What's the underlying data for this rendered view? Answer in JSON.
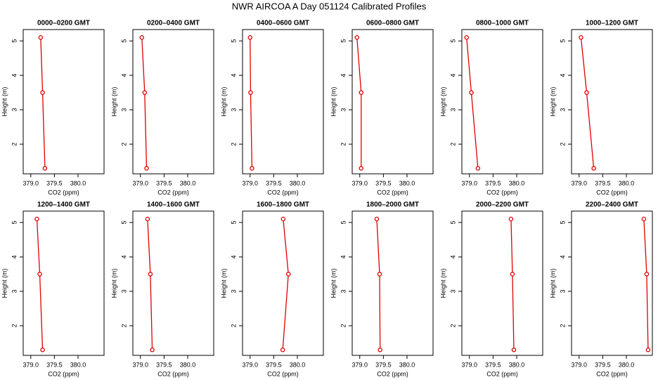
{
  "title": "NWR AIRCOA A  Day 051124  Calibrated Profiles",
  "chart_data": [
    {
      "type": "line",
      "title": "0000–0200 GMT",
      "xlabel": "CO2 (ppm)",
      "ylabel": "Height (m)",
      "x": [
        379.21,
        379.25,
        379.3
      ],
      "values": [
        5.1,
        3.5,
        1.3
      ],
      "color": "#e00000",
      "xlim": [
        378.84,
        380.55
      ],
      "ylim": [
        1.14,
        5.33
      ],
      "xticks": [
        {
          "value": 379,
          "label": "379.0"
        },
        {
          "value": 379.5,
          "label": "379.5"
        },
        {
          "value": 380,
          "label": "380.0"
        }
      ],
      "yticks": [
        2,
        3,
        4,
        5
      ]
    },
    {
      "type": "line",
      "title": "0200–0400 GMT",
      "xlabel": "CO2 (ppm)",
      "ylabel": "Height (m)",
      "x": [
        379.03,
        379.09,
        379.13
      ],
      "values": [
        5.1,
        3.5,
        1.3
      ],
      "color": "#e00000",
      "xlim": [
        378.84,
        380.55
      ],
      "ylim": [
        1.14,
        5.33
      ],
      "xticks": [
        {
          "value": 379,
          "label": "379.0"
        },
        {
          "value": 379.5,
          "label": "379.5"
        },
        {
          "value": 380,
          "label": "380.0"
        }
      ],
      "yticks": [
        2,
        3,
        4,
        5
      ]
    },
    {
      "type": "line",
      "title": "0400–0600 GMT",
      "xlabel": "CO2 (ppm)",
      "ylabel": "Height (m)",
      "x": [
        379.0,
        379.01,
        379.04
      ],
      "values": [
        5.1,
        3.5,
        1.3
      ],
      "color": "#e00000",
      "xlim": [
        378.84,
        380.55
      ],
      "ylim": [
        1.14,
        5.33
      ],
      "xticks": [
        {
          "value": 379,
          "label": "379.0"
        },
        {
          "value": 379.5,
          "label": "379.5"
        },
        {
          "value": 380,
          "label": "380.0"
        }
      ],
      "yticks": [
        2,
        3,
        4,
        5
      ]
    },
    {
      "type": "line",
      "title": "0600–0800 GMT",
      "xlabel": "CO2 (ppm)",
      "ylabel": "Height (m)",
      "x": [
        378.94,
        379.03,
        379.03
      ],
      "values": [
        5.1,
        3.5,
        1.3
      ],
      "color": "#e00000",
      "xlim": [
        378.84,
        380.55
      ],
      "ylim": [
        1.14,
        5.33
      ],
      "xticks": [
        {
          "value": 379,
          "label": "379.0"
        },
        {
          "value": 379.5,
          "label": "379.5"
        },
        {
          "value": 380,
          "label": "380.0"
        }
      ],
      "yticks": [
        2,
        3,
        4,
        5
      ]
    },
    {
      "type": "line",
      "title": "0800–1000 GMT",
      "xlabel": "CO2 (ppm)",
      "ylabel": "Height (m)",
      "x": [
        378.94,
        379.04,
        379.18
      ],
      "values": [
        5.1,
        3.5,
        1.3
      ],
      "color": "#e00000",
      "xlim": [
        378.84,
        380.55
      ],
      "ylim": [
        1.14,
        5.33
      ],
      "xticks": [
        {
          "value": 379,
          "label": "379.0"
        },
        {
          "value": 379.5,
          "label": "379.5"
        },
        {
          "value": 380,
          "label": "380.0"
        }
      ],
      "yticks": [
        2,
        3,
        4,
        5
      ]
    },
    {
      "type": "line",
      "title": "1000–1200 GMT",
      "xlabel": "CO2 (ppm)",
      "ylabel": "Height (m)",
      "x": [
        379.04,
        379.16,
        379.31
      ],
      "values": [
        5.1,
        3.5,
        1.3
      ],
      "color": "#e00000",
      "xlim": [
        378.84,
        380.55
      ],
      "ylim": [
        1.14,
        5.33
      ],
      "xticks": [
        {
          "value": 379,
          "label": "379.0"
        },
        {
          "value": 379.5,
          "label": "379.5"
        },
        {
          "value": 380,
          "label": "380.0"
        }
      ],
      "yticks": [
        2,
        3,
        4,
        5
      ]
    },
    {
      "type": "line",
      "title": "1200–1400 GMT",
      "xlabel": "CO2 (ppm)",
      "ylabel": "Height (m)",
      "x": [
        379.13,
        379.19,
        379.25
      ],
      "values": [
        5.1,
        3.5,
        1.3
      ],
      "color": "#e00000",
      "xlim": [
        378.84,
        380.55
      ],
      "ylim": [
        1.14,
        5.33
      ],
      "xticks": [
        {
          "value": 379,
          "label": "379.0"
        },
        {
          "value": 379.5,
          "label": "379.5"
        },
        {
          "value": 380,
          "label": "380.0"
        }
      ],
      "yticks": [
        2,
        3,
        4,
        5
      ]
    },
    {
      "type": "line",
      "title": "1400–1600 GMT",
      "xlabel": "CO2 (ppm)",
      "ylabel": "Height (m)",
      "x": [
        379.15,
        379.21,
        379.25
      ],
      "values": [
        5.1,
        3.5,
        1.3
      ],
      "color": "#e00000",
      "xlim": [
        378.84,
        380.55
      ],
      "ylim": [
        1.14,
        5.33
      ],
      "xticks": [
        {
          "value": 379,
          "label": "379.0"
        },
        {
          "value": 379.5,
          "label": "379.5"
        },
        {
          "value": 380,
          "label": "380.0"
        }
      ],
      "yticks": [
        2,
        3,
        4,
        5
      ]
    },
    {
      "type": "line",
      "title": "1600–1800 GMT",
      "xlabel": "CO2 (ppm)",
      "ylabel": "Height (m)",
      "x": [
        379.7,
        379.81,
        379.69
      ],
      "values": [
        5.1,
        3.5,
        1.3
      ],
      "color": "#e00000",
      "xlim": [
        378.84,
        380.55
      ],
      "ylim": [
        1.14,
        5.33
      ],
      "xticks": [
        {
          "value": 379,
          "label": "379.0"
        },
        {
          "value": 379.5,
          "label": "379.5"
        },
        {
          "value": 380,
          "label": "380.0"
        }
      ],
      "yticks": [
        2,
        3,
        4,
        5
      ]
    },
    {
      "type": "line",
      "title": "1800–2000 GMT",
      "xlabel": "CO2 (ppm)",
      "ylabel": "Height (m)",
      "x": [
        379.36,
        379.42,
        379.43
      ],
      "values": [
        5.1,
        3.5,
        1.3
      ],
      "color": "#e00000",
      "xlim": [
        378.84,
        380.55
      ],
      "ylim": [
        1.14,
        5.33
      ],
      "xticks": [
        {
          "value": 379,
          "label": "379.0"
        },
        {
          "value": 379.5,
          "label": "379.5"
        },
        {
          "value": 380,
          "label": "380.0"
        }
      ],
      "yticks": [
        2,
        3,
        4,
        5
      ]
    },
    {
      "type": "line",
      "title": "2000–2200 GMT",
      "xlabel": "CO2 (ppm)",
      "ylabel": "Height (m)",
      "x": [
        379.88,
        379.91,
        379.94
      ],
      "values": [
        5.1,
        3.5,
        1.3
      ],
      "color": "#e00000",
      "xlim": [
        378.84,
        380.55
      ],
      "ylim": [
        1.14,
        5.33
      ],
      "xticks": [
        {
          "value": 379,
          "label": "379.0"
        },
        {
          "value": 379.5,
          "label": "379.5"
        },
        {
          "value": 380,
          "label": "380.0"
        }
      ],
      "yticks": [
        2,
        3,
        4,
        5
      ]
    },
    {
      "type": "line",
      "title": "2200–2400 GMT",
      "xlabel": "CO2 (ppm)",
      "ylabel": "Height (m)",
      "x": [
        380.37,
        380.43,
        380.46
      ],
      "values": [
        5.1,
        3.5,
        1.3
      ],
      "color": "#e00000",
      "xlim": [
        378.84,
        380.55
      ],
      "ylim": [
        1.14,
        5.33
      ],
      "xticks": [
        {
          "value": 379,
          "label": "379.0"
        },
        {
          "value": 379.5,
          "label": "379.5"
        },
        {
          "value": 380,
          "label": "380.0"
        }
      ],
      "yticks": [
        2,
        3,
        4,
        5
      ]
    }
  ]
}
